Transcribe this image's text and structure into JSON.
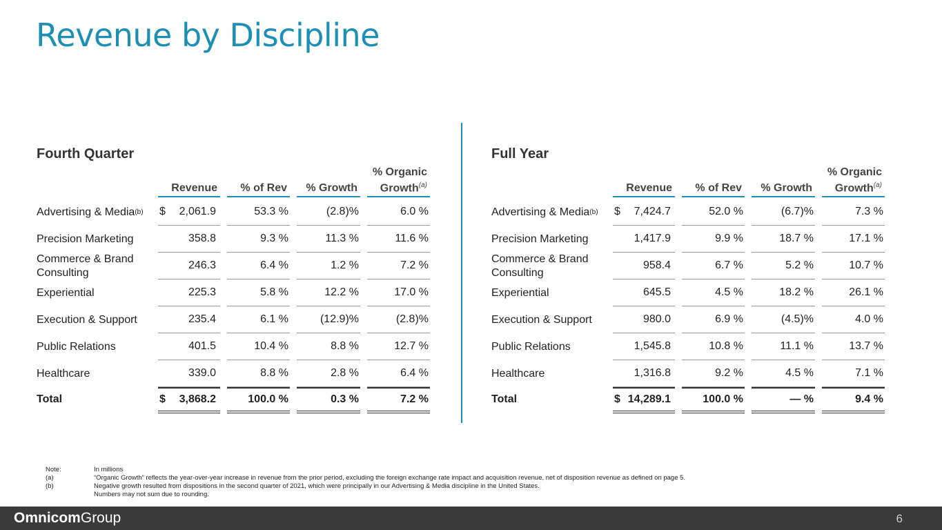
{
  "title": "Revenue by Discipline",
  "headers": {
    "revenue": "Revenue",
    "pct_rev": "% of Rev",
    "growth": "% Growth",
    "organic_line1": "% Organic",
    "organic_line2": "Growth",
    "organic_sup": "(a)"
  },
  "fourth_quarter": {
    "title": "Fourth Quarter",
    "rows": [
      {
        "label": "Advertising & Media",
        "sup": "(b)",
        "dollar": "$",
        "revenue": "2,061.9",
        "pct_rev": "53.3 %",
        "growth": "(2.8)%",
        "organic": "6.0 %"
      },
      {
        "label": "Precision Marketing",
        "sup": "",
        "dollar": "",
        "revenue": "358.8",
        "pct_rev": "9.3 %",
        "growth": "11.3 %",
        "organic": "11.6 %"
      },
      {
        "label": "Commerce & Brand Consulting",
        "sup": "",
        "dollar": "",
        "revenue": "246.3",
        "pct_rev": "6.4 %",
        "growth": "1.2 %",
        "organic": "7.2 %"
      },
      {
        "label": "Experiential",
        "sup": "",
        "dollar": "",
        "revenue": "225.3",
        "pct_rev": "5.8 %",
        "growth": "12.2 %",
        "organic": "17.0 %"
      },
      {
        "label": "Execution & Support",
        "sup": "",
        "dollar": "",
        "revenue": "235.4",
        "pct_rev": "6.1 %",
        "growth": "(12.9)%",
        "organic": "(2.8)%"
      },
      {
        "label": "Public Relations",
        "sup": "",
        "dollar": "",
        "revenue": "401.5",
        "pct_rev": "10.4 %",
        "growth": "8.8 %",
        "organic": "12.7 %"
      },
      {
        "label": "Healthcare",
        "sup": "",
        "dollar": "",
        "revenue": "339.0",
        "pct_rev": "8.8 %",
        "growth": "2.8 %",
        "organic": "6.4 %"
      }
    ],
    "total": {
      "label": "Total",
      "dollar": "$",
      "revenue": "3,868.2",
      "pct_rev": "100.0 %",
      "growth": "0.3 %",
      "organic": "7.2 %"
    }
  },
  "full_year": {
    "title": "Full Year",
    "rows": [
      {
        "label": "Advertising & Media",
        "sup": "(b)",
        "dollar": "$",
        "revenue": "7,424.7",
        "pct_rev": "52.0 %",
        "growth": "(6.7)%",
        "organic": "7.3 %"
      },
      {
        "label": "Precision Marketing",
        "sup": "",
        "dollar": "",
        "revenue": "1,417.9",
        "pct_rev": "9.9 %",
        "growth": "18.7 %",
        "organic": "17.1 %"
      },
      {
        "label": "Commerce & Brand Consulting",
        "sup": "",
        "dollar": "",
        "revenue": "958.4",
        "pct_rev": "6.7 %",
        "growth": "5.2 %",
        "organic": "10.7 %"
      },
      {
        "label": "Experiential",
        "sup": "",
        "dollar": "",
        "revenue": "645.5",
        "pct_rev": "4.5 %",
        "growth": "18.2 %",
        "organic": "26.1 %"
      },
      {
        "label": "Execution & Support",
        "sup": "",
        "dollar": "",
        "revenue": "980.0",
        "pct_rev": "6.9 %",
        "growth": "(4.5)%",
        "organic": "4.0 %"
      },
      {
        "label": "Public Relations",
        "sup": "",
        "dollar": "",
        "revenue": "1,545.8",
        "pct_rev": "10.8 %",
        "growth": "11.1 %",
        "organic": "13.7 %"
      },
      {
        "label": "Healthcare",
        "sup": "",
        "dollar": "",
        "revenue": "1,316.8",
        "pct_rev": "9.2 %",
        "growth": "4.5 %",
        "organic": "7.1 %"
      }
    ],
    "total": {
      "label": "Total",
      "dollar": "$",
      "revenue": "14,289.1",
      "pct_rev": "100.0 %",
      "growth": "— %",
      "organic": "9.4 %"
    }
  },
  "notes": [
    {
      "key": "Note:",
      "text": "In millions"
    },
    {
      "key": "(a)",
      "text": "“Organic Growth” reflects the year-over-year increase in revenue from the prior period, excluding the foreign exchange rate impact and acquisition revenue, net of disposition revenue as defined on page 5."
    },
    {
      "key": "(b)",
      "text": "Negative growth resulted from dispositions in the second quarter of 2021, which were principally in our Advertising & Media discipline in the United States."
    },
    {
      "key": "",
      "text": "Numbers may not sum due to rounding."
    }
  ],
  "footer": {
    "logo_bold": "Omnicom",
    "logo_light": "Group",
    "page_number": "6"
  },
  "colors": {
    "accent": "#1d8fb5",
    "footer_bg": "#3a3a3a"
  }
}
